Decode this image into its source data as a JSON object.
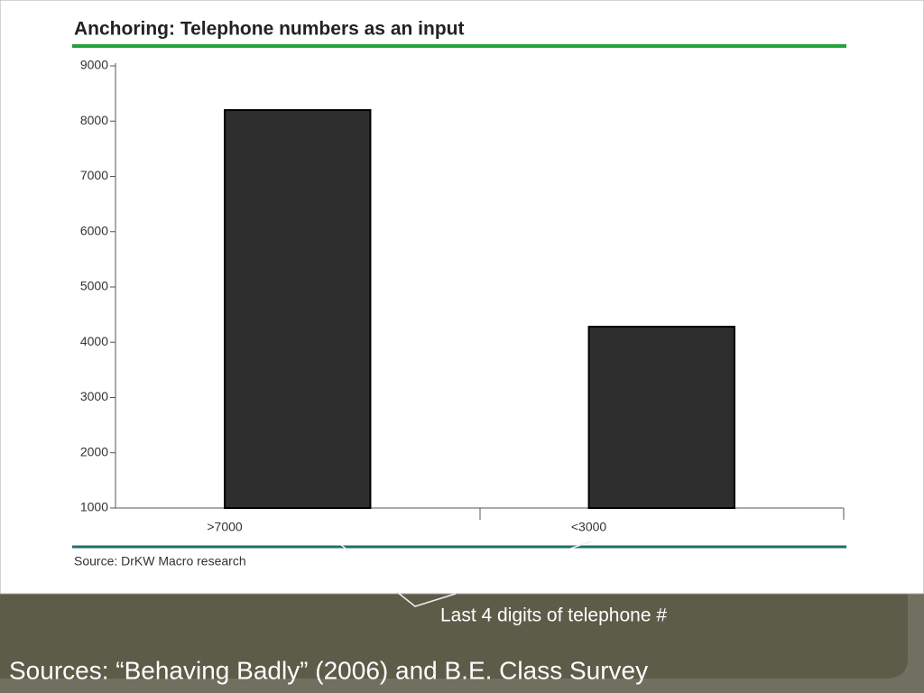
{
  "chart_data": {
    "type": "bar",
    "title": "Anchoring: Telephone numbers as an input",
    "categories": [
      ">7000",
      "<3000"
    ],
    "values": [
      8200,
      4280
    ],
    "color": "#2e2e2e",
    "ylim": [
      1000,
      9000
    ],
    "yticks": [
      1000,
      2000,
      3000,
      4000,
      5000,
      6000,
      7000,
      8000,
      9000
    ],
    "source": "Source: DrKW Macro research",
    "annotation": "Last 4 digits of telephone #"
  },
  "footer": "Sources: “Behaving Badly” (2006) and B.E. Class Survey"
}
